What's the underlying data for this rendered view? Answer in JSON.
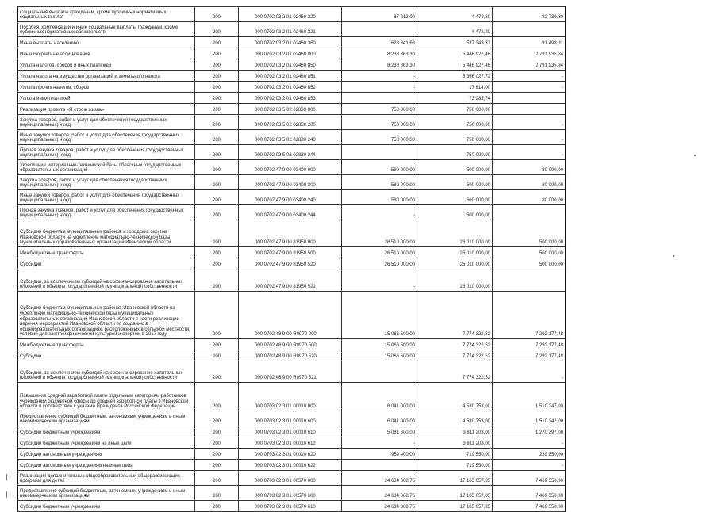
{
  "table": {
    "rows": [
      [
        "Социальные выплаты гражданам, кроме публичных нормативных социальных выплат",
        "200",
        "000 0702 03 2 01 02460 320",
        "87 212,00",
        "4 472,20",
        "82 739,80"
      ],
      [
        "Пособия, компенсации и иные социальные выплаты гражданам, кроме публичных нормативных обязательств",
        "200",
        "000 0702 03 2 01 02460 321",
        "-",
        "4 472,20",
        ""
      ],
      [
        "Иные выплаты населению",
        "200",
        "000 0702 03 2 01 02460 360",
        "628 841,68",
        "537 343,37",
        "91 498,31"
      ],
      [
        "Иные бюджетные ассигнования",
        "200",
        "000 0702 03 2 01 02460 800",
        "8 238 863,30",
        "5 446 927,46",
        "2 791 935,84"
      ],
      [
        "Уплата налогов, сборов и иных платежей",
        "200",
        "000 0702 03 2 01 02460 850",
        "8 238 863,30",
        "5 446 927,46",
        "2 791 935,84"
      ],
      [
        "Уплата налога на имущество организаций и земельного налога",
        "200",
        "000 0702 03 2 01 02460 851",
        "-",
        "5 356 027,72",
        "-"
      ],
      [
        "Уплата прочих налогов, сборов",
        "200",
        "000 0702 03 2 01 02460 852",
        "-",
        "17 614,00",
        "-"
      ],
      [
        "Уплата иных платежей",
        "200",
        "000 0702 03 2 01 02460 853",
        "",
        "73 285,74",
        ""
      ],
      [
        "Реализация проекта «Я строю жизнь»",
        "200",
        "000 0702 03 5 02 02830 000",
        "750 000,00",
        "750 000,00",
        ""
      ],
      [
        "Закупка товаров, работ и услуг для обеспечения государственных (муниципальных) нужд",
        "200",
        "000 0702 03 5 02 02830 200",
        "750 000,00",
        "750 000,00",
        "-"
      ],
      [
        "Иные закупки товаров, работ и услуг для обеспечения государственных (муниципальных) нужд",
        "200",
        "000 0702 03 5 02 02830 240",
        "750 000,00",
        "750 000,00",
        "-"
      ],
      [
        "Прочая закупка товаров, работ и услуг для обеспечения государственных (муниципальных) нужд",
        "200",
        "000 0702 03 5 02 02830 244",
        "",
        "750 000,00",
        "-"
      ],
      [
        "Укрепление материально-технической базы областных государственных образовательных организаций",
        "200",
        "000 0702 47 9 00 03400 000",
        "580 000,00",
        "500 000,00",
        "80 000,00"
      ],
      [
        "Закупка товаров, работ и услуг для обеспечения государственных (муниципальных) нужд",
        "200",
        "000 0702 47 9 00 03400 200",
        "580 000,00",
        "500 000,00",
        "80 000,00"
      ],
      [
        "Иные закупки товаров, работ и услуг для обеспечения государственных (муниципальных) нужд",
        "200",
        "000 0702 47 9 00 03400 240",
        "580 000,00",
        "500 000,00",
        "80 000,00"
      ],
      [
        "Прочая закупка товаров, работ и услуг для обеспечения государственных (муниципальных) нужд",
        "200",
        "000 0702 47 9 00 03400 244",
        "-",
        "500 000,00",
        ""
      ],
      [
        "Субсидии бюджетам муниципальных районов и городских округов Ивановской области на укрепление материально-технической базы муниципальных образовательных организаций Ивановской области",
        "200",
        "000 0702 47 9 00 81950 000",
        "26 510 000,00",
        "26 010 000,00",
        "500 000,00"
      ],
      [
        "Межбюджетные трансферты",
        "200",
        "000 0702 47 9 00 81950 500",
        "26 510 000,00",
        "26 010 000,00",
        "500 000,00"
      ],
      [
        "Субсидии",
        "200",
        "000 0702 47 9 00 81950 520",
        "26 510 000,00",
        "26 010 000,00",
        "500 000,00"
      ],
      [
        "Субсидии, за исключением субсидий на софинансирование капитальных вложений в объекты государственной (муниципальной) собственности",
        "200",
        "000 0702 47 9 00 81950 521",
        "-",
        "26 010 000,00",
        ""
      ],
      [
        "Субсидии бюджетам муниципальных районов Ивановской области на укрепление материально-технической базы муниципальных образовательных организаций Ивановской области в части реализации перечня мероприятий Ивановской области по созданию в общеобразовательных организациях, расположенных в сельской местности, условий для занятий физической культурой и спортом в 2017 году",
        "200",
        "000 0702 48 9 00 R0970 000",
        "15 066 500,00",
        "7 774 322,52",
        "7 292 177,48"
      ],
      [
        "Межбюджетные трансферты",
        "200",
        "000 0702 48 9 00 R0970 500",
        "15 066 500,00",
        "7 774 322,52",
        "7 292 177,48"
      ],
      [
        "Субсидии",
        "200",
        "000 0702 48 9 00 R0970 520",
        "15 066 500,00",
        "7 774 322,52",
        "7 292 177,48"
      ],
      [
        "Субсидии, за исключением субсидий на софинансирование капитальных вложений в объекты государственной (муниципальной) собственности",
        "200",
        "000 0702 48 9 00 R0970 521",
        "",
        "7 774 322,52",
        "-"
      ],
      [
        "Повышение средней заработной платы отдельным категориям работников учреждений бюджетной сферы до средней заработной платы в Ивановской области в соответствии с указами Президента Российской Федерации",
        "200",
        "000 0703 02 3 01 00010 000",
        "6 041 000,00",
        "4 530 753,00",
        "1 510 247,00"
      ],
      [
        "Предоставление субсидий бюджетным, автономным учреждениям и иным некоммерческим организациям",
        "200",
        "000 0703 02 3 01 00010 600",
        "6 041 000,00",
        "4 530 753,00",
        "1 510 247,00"
      ],
      [
        "Субсидии бюджетным учреждениям",
        "200",
        "000 0703 02 3 01 00010 610",
        "5 081 600,00",
        "3 811 203,00",
        "1 270 397,00"
      ],
      [
        "Субсидии бюджетным учреждениям на иные цели",
        "200",
        "000 0703 02 3 01 00010 612",
        "-",
        "3 811 203,00",
        "-"
      ],
      [
        "Субсидии автономным учреждениям",
        "200",
        "000 0703 02 3 01 00010 620",
        "959 400,00",
        "719 550,00",
        "239 850,00"
      ],
      [
        "Субсидии автономным учреждениям на иные цели",
        "200",
        "000 0703 02 3 01 00010 622",
        "",
        "719 550,00",
        "-"
      ],
      [
        "Реализация дополнительных общеобразовательных общеразвивающих программ для детей",
        "200",
        "000 0703 02 3 01 00570 000",
        "24 634 608,75",
        "17 165 057,85",
        "7 469 550,90"
      ],
      [
        "Предоставление субсидий бюджетным, автономным учреждениям и иным некоммерческим организациям",
        "200",
        "000 0703 02 3 01 00570 600",
        "24 634 608,75",
        "17 165 057,85",
        "7 469 550,90"
      ],
      [
        "Субсидии бюджетным учреждениям",
        "200",
        "000 0703 02 3 01 00570 610",
        "24 634 608,75",
        "17 165 057,85",
        "7 469 550,90"
      ]
    ]
  }
}
